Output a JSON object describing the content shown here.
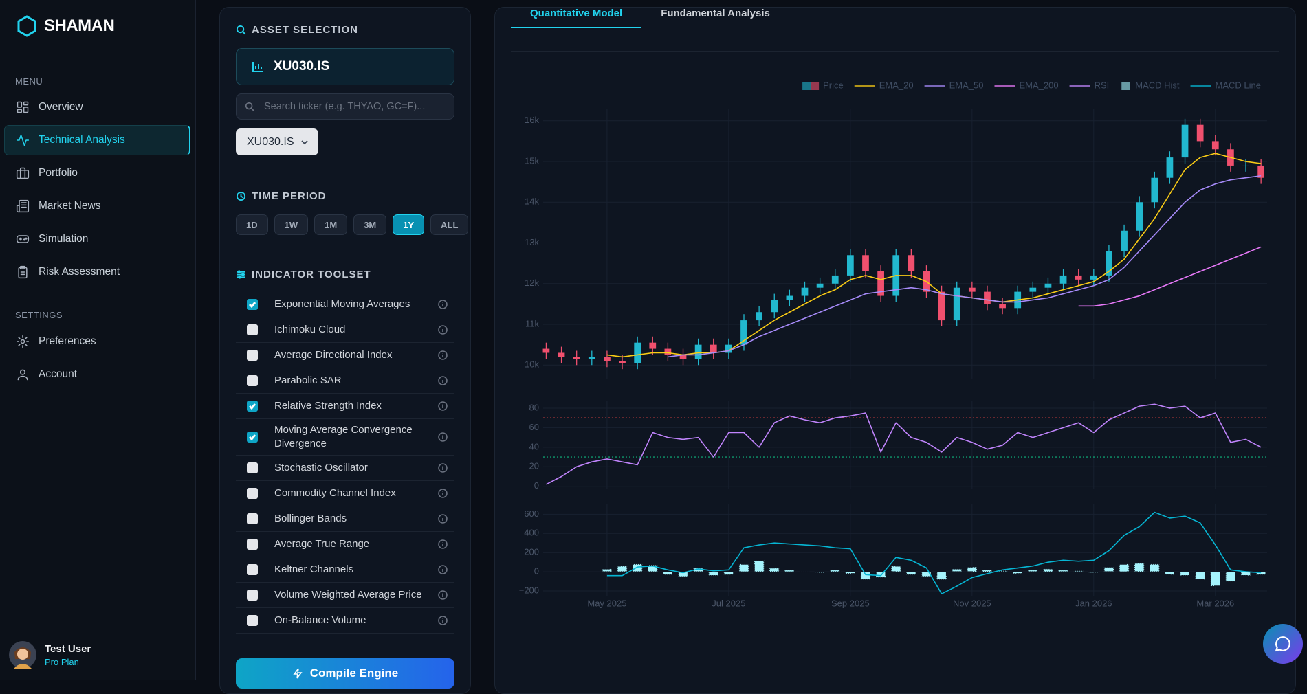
{
  "sidebar": {
    "brand": "SHAMAN",
    "menu_heading": "MENU",
    "menu": [
      {
        "label": "Overview",
        "active": false
      },
      {
        "label": "Technical Analysis",
        "active": true
      },
      {
        "label": "Portfolio",
        "active": false
      },
      {
        "label": "Market News",
        "active": false
      },
      {
        "label": "Simulation",
        "active": false
      },
      {
        "label": "Risk Assessment",
        "active": false
      }
    ],
    "settings_heading": "SETTINGS",
    "settings": [
      {
        "label": "Preferences",
        "active": false
      },
      {
        "label": "Account",
        "active": false
      }
    ],
    "user": {
      "name": "Test User",
      "plan": "Pro Plan"
    }
  },
  "controls": {
    "asset_heading": "ASSET SELECTION",
    "selected_asset": "XU030.IS",
    "search_placeholder": "Search ticker (e.g. THYAO, GC=F)...",
    "dropdown_value": "XU030.IS",
    "period_heading": "TIME PERIOD",
    "periods": [
      {
        "label": "1D",
        "active": false
      },
      {
        "label": "1W",
        "active": false
      },
      {
        "label": "1M",
        "active": false
      },
      {
        "label": "3M",
        "active": false
      },
      {
        "label": "1Y",
        "active": true
      },
      {
        "label": "ALL",
        "active": false
      }
    ],
    "indicator_heading": "INDICATOR TOOLSET",
    "indicators": [
      {
        "label": "Exponential Moving Averages",
        "checked": true
      },
      {
        "label": "Ichimoku Cloud",
        "checked": false
      },
      {
        "label": "Average Directional Index",
        "checked": false
      },
      {
        "label": "Parabolic SAR",
        "checked": false
      },
      {
        "label": "Relative Strength Index",
        "checked": true
      },
      {
        "label": "Moving Average Convergence Divergence",
        "checked": true
      },
      {
        "label": "Stochastic Oscillator",
        "checked": false
      },
      {
        "label": "Commodity Channel Index",
        "checked": false
      },
      {
        "label": "Bollinger Bands",
        "checked": false
      },
      {
        "label": "Average True Range",
        "checked": false
      },
      {
        "label": "Keltner Channels",
        "checked": false
      },
      {
        "label": "Volume Weighted Average Price",
        "checked": false
      },
      {
        "label": "On-Balance Volume",
        "checked": false
      }
    ],
    "compile_button": "Compile Engine"
  },
  "tabs": [
    {
      "label": "Quantitative Model",
      "active": true
    },
    {
      "label": "Fundamental Analysis",
      "active": false
    }
  ],
  "chart_data": {
    "type": "candlestick",
    "legend": "top-right",
    "grid": true,
    "x": [
      0,
      0.25,
      0.5,
      0.75,
      1,
      1.25,
      1.5,
      1.75,
      2,
      2.25,
      2.5,
      2.75,
      3,
      3.25,
      3.5,
      3.75,
      4,
      4.25,
      4.5,
      4.75,
      5,
      5.25,
      5.5,
      5.75,
      6,
      6.25,
      6.5,
      6.75,
      7,
      7.25,
      7.5,
      7.75,
      8,
      8.25,
      8.5,
      8.75,
      9,
      9.25,
      9.5,
      9.75,
      10,
      10.25,
      10.5,
      10.75,
      11,
      11.25,
      11.5,
      11.75
    ],
    "xlim": [
      -0.05,
      11.85
    ],
    "xticks": [
      {
        "value": 1,
        "label": "May 2025"
      },
      {
        "value": 3,
        "label": "Jul 2025"
      },
      {
        "value": 5,
        "label": "Sep 2025"
      },
      {
        "value": 7,
        "label": "Nov 2025"
      },
      {
        "value": 9,
        "label": "Jan 2026"
      },
      {
        "value": 11,
        "label": "Mar 2026"
      }
    ],
    "panels": [
      {
        "ylim": [
          9650,
          16300
        ],
        "yticks": [
          {
            "value": 10000,
            "label": "10k"
          },
          {
            "value": 11000,
            "label": "11k"
          },
          {
            "value": 12000,
            "label": "12k"
          },
          {
            "value": 13000,
            "label": "13k"
          },
          {
            "value": 14000,
            "label": "14k"
          },
          {
            "value": 15000,
            "label": "15k"
          },
          {
            "value": 16000,
            "label": "16k"
          }
        ],
        "series": [
          {
            "name": "Price",
            "type": "candlestick",
            "increasing_color": "#22b8cf",
            "decreasing_color": "#f0506e",
            "open": [
              10400,
              10300,
              10200,
              10150,
              10200,
              10100,
              10050,
              10550,
              10400,
              10250,
              10150,
              10500,
              10300,
              10500,
              11100,
              11300,
              11600,
              11700,
              11900,
              12000,
              12200,
              12700,
              12300,
              11700,
              12700,
              12300,
              11800,
              11100,
              11900,
              11800,
              11500,
              11400,
              11800,
              11900,
              12000,
              12200,
              12100,
              12200,
              12800,
              13300,
              14000,
              14600,
              15100,
              15900,
              15500,
              15300,
              14900,
              14900
            ],
            "high": [
              10550,
              10450,
              10350,
              10350,
              10350,
              10250,
              10700,
              10700,
              10550,
              10400,
              10650,
              10650,
              10650,
              11250,
              11450,
              11750,
              11850,
              12050,
              12150,
              12350,
              12850,
              12850,
              12450,
              12850,
              12850,
              12450,
              11950,
              12050,
              12050,
              11950,
              11650,
              11950,
              12050,
              12150,
              12350,
              12350,
              12350,
              12950,
              13450,
              14150,
              14750,
              15250,
              16050,
              16050,
              15650,
              15450,
              15050,
              15050
            ],
            "low": [
              10150,
              10050,
              10000,
              10000,
              9950,
              9900,
              9900,
              10250,
              10100,
              10000,
              10000,
              10150,
              10150,
              10350,
              10950,
              11150,
              11450,
              11550,
              11750,
              11850,
              12050,
              12150,
              11550,
              11550,
              12150,
              11650,
              10950,
              10950,
              11650,
              11350,
              11250,
              11250,
              11650,
              11750,
              11850,
              11950,
              11950,
              12050,
              12650,
              13150,
              13850,
              14450,
              14950,
              15350,
              15150,
              14750,
              14750,
              14450
            ],
            "close": [
              10300,
              10200,
              10150,
              10200,
              10100,
              10050,
              10550,
              10400,
              10250,
              10150,
              10500,
              10300,
              10500,
              11100,
              11300,
              11600,
              11700,
              11900,
              12000,
              12200,
              12700,
              12300,
              11700,
              12700,
              12300,
              11800,
              11100,
              11900,
              11800,
              11500,
              11400,
              11800,
              11900,
              12000,
              12200,
              12100,
              12200,
              12800,
              13300,
              14000,
              14600,
              15100,
              15900,
              15500,
              15300,
              14900,
              14900,
              14600
            ]
          },
          {
            "name": "EMA_20",
            "type": "line",
            "color": "#facc15",
            "values": [
              null,
              null,
              null,
              null,
              10250,
              10200,
              10250,
              10300,
              10300,
              10250,
              10300,
              10300,
              10350,
              10600,
              10850,
              11100,
              11300,
              11500,
              11700,
              11850,
              12100,
              12200,
              12100,
              12200,
              12200,
              12050,
              11750,
              11700,
              11650,
              11600,
              11550,
              11600,
              11650,
              11750,
              11850,
              11950,
              12050,
              12300,
              12600,
              13100,
              13600,
              14200,
              14800,
              15100,
              15200,
              15100,
              15000,
              14950
            ]
          },
          {
            "name": "EMA_50",
            "type": "line",
            "color": "#a78bfa",
            "values": [
              null,
              null,
              null,
              null,
              null,
              null,
              null,
              null,
              10200,
              10250,
              10250,
              10300,
              10350,
              10500,
              10700,
              10850,
              11000,
              11150,
              11300,
              11450,
              11600,
              11750,
              11800,
              11850,
              11900,
              11850,
              11750,
              11700,
              11650,
              11600,
              11550,
              11550,
              11600,
              11650,
              11750,
              11850,
              11950,
              12100,
              12400,
              12800,
              13200,
              13600,
              14000,
              14300,
              14450,
              14550,
              14600,
              14650
            ]
          },
          {
            "name": "EMA_200",
            "type": "line",
            "color": "#e879f9",
            "values": [
              null,
              null,
              null,
              null,
              null,
              null,
              null,
              null,
              null,
              null,
              null,
              null,
              null,
              null,
              null,
              null,
              null,
              null,
              null,
              null,
              null,
              null,
              null,
              null,
              null,
              null,
              null,
              null,
              null,
              null,
              null,
              null,
              null,
              null,
              null,
              11450,
              11450,
              11500,
              11600,
              11700,
              11850,
              12000,
              12150,
              12300,
              12450,
              12600,
              12750,
              12900
            ]
          }
        ]
      },
      {
        "ylim": [
          -3,
          87
        ],
        "yticks": [
          0,
          20,
          40,
          60,
          80
        ],
        "ref_lines": [
          {
            "value": 70,
            "color": "#ef4444"
          },
          {
            "value": 30,
            "color": "#10b981"
          }
        ],
        "series": [
          {
            "name": "RSI",
            "type": "line",
            "color": "#c084fc",
            "values": [
              2,
              10,
              20,
              25,
              28,
              25,
              22,
              55,
              50,
              48,
              50,
              30,
              55,
              55,
              40,
              65,
              72,
              68,
              65,
              70,
              72,
              75,
              35,
              65,
              50,
              45,
              35,
              50,
              45,
              38,
              42,
              55,
              50,
              55,
              60,
              65,
              55,
              68,
              75,
              82,
              84,
              80,
              82,
              70,
              75,
              45,
              48,
              40
            ]
          }
        ]
      },
      {
        "ylim": [
          -250,
          710
        ],
        "yticks": [
          {
            "value": -200,
            "label": "−200"
          },
          0,
          200,
          400,
          600
        ],
        "series": [
          {
            "name": "MACD Hist",
            "type": "bar",
            "color": "#a5f3fc",
            "values": [
              null,
              null,
              null,
              null,
              30,
              60,
              80,
              70,
              -30,
              -50,
              40,
              -40,
              -30,
              80,
              120,
              40,
              20,
              0,
              -10,
              20,
              -20,
              -80,
              -60,
              60,
              -30,
              -50,
              -80,
              30,
              50,
              20,
              10,
              -20,
              20,
              30,
              20,
              10,
              -10,
              50,
              80,
              90,
              80,
              -30,
              -40,
              -80,
              -150,
              -100,
              -40,
              -30
            ]
          },
          {
            "name": "MACD Line",
            "type": "line",
            "color": "#06b6d4",
            "values": [
              null,
              null,
              null,
              null,
              -40,
              -40,
              50,
              60,
              20,
              -10,
              30,
              10,
              20,
              250,
              280,
              300,
              290,
              280,
              270,
              250,
              240,
              -30,
              -40,
              150,
              120,
              40,
              -230,
              -150,
              -60,
              -20,
              20,
              40,
              60,
              100,
              120,
              110,
              120,
              220,
              380,
              470,
              620,
              560,
              580,
              510,
              280,
              20,
              0,
              -10
            ]
          }
        ]
      }
    ]
  }
}
